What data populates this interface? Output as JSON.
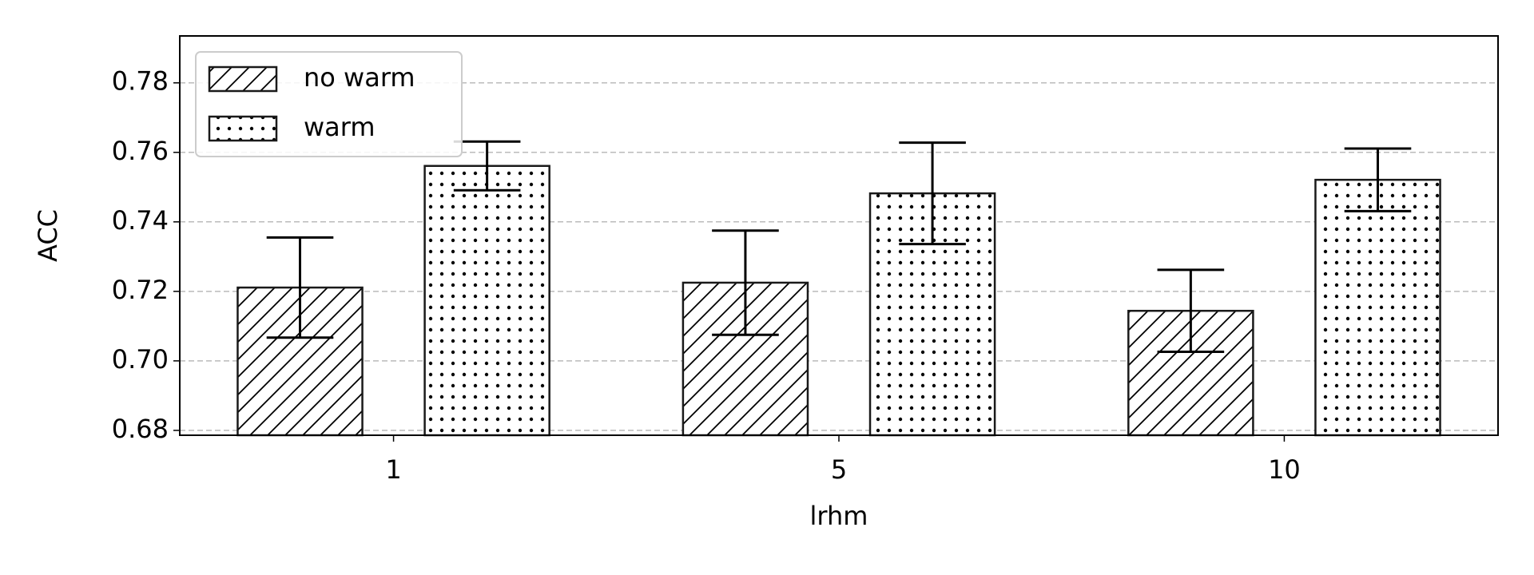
{
  "chart_data": {
    "type": "bar",
    "xlabel": "lrhm",
    "ylabel": "ACC",
    "categories": [
      "1",
      "5",
      "10"
    ],
    "series": [
      {
        "name": "no warm",
        "color": "#ffffff",
        "hatch": "//",
        "values": [
          0.7211,
          0.7225,
          0.7144
        ],
        "errors": [
          0.0144,
          0.015,
          0.0118
        ]
      },
      {
        "name": "warm",
        "color": "#ffffff",
        "hatch": "..",
        "values": [
          0.7561,
          0.7482,
          0.7521
        ],
        "errors": [
          0.007,
          0.0146,
          0.009
        ]
      }
    ],
    "ylim": [
      0.6786,
      0.7935
    ],
    "yticks": [
      0.68,
      {
        "value": 0.7,
        "label": "0.70"
      },
      0.72,
      0.74,
      0.76,
      0.78
    ],
    "grid": true,
    "legend": "upper left"
  }
}
